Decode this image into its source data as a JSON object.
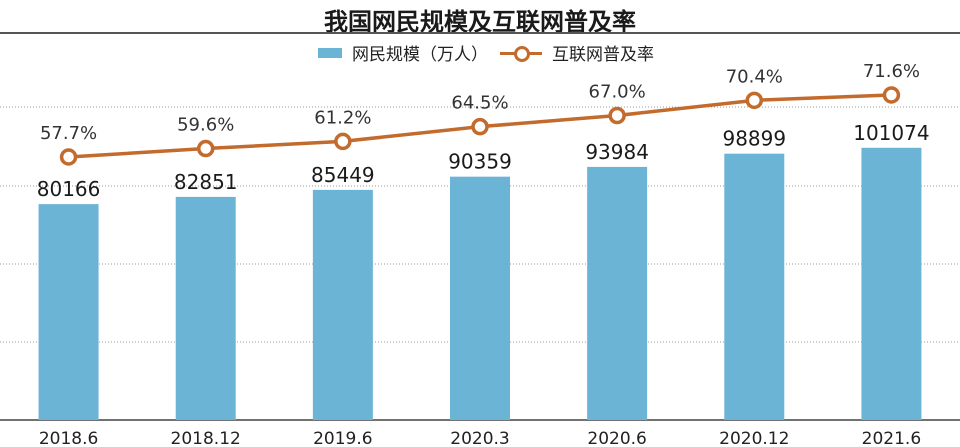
{
  "title": "我国网民规模及互联网普及率",
  "legend": {
    "bar_label": "网民规模（万人）",
    "line_label": "互联网普及率"
  },
  "colors": {
    "bar": "#6cb4d6",
    "line": "#c36a2d",
    "grid": "#9a9a9a",
    "text": "#222222"
  },
  "chart_data": {
    "type": "bar",
    "title": "我国网民规模及互联网普及率",
    "categories": [
      "2018.6",
      "2018.12",
      "2019.6",
      "2020.3",
      "2020.6",
      "2020.12",
      "2021.6"
    ],
    "series": [
      {
        "name": "网民规模（万人）",
        "type": "bar",
        "values": [
          80166,
          82851,
          85449,
          90359,
          93984,
          98899,
          101074
        ],
        "labels": [
          "80166",
          "82851",
          "85449",
          "90359",
          "93984",
          "98899",
          "101074"
        ]
      },
      {
        "name": "互联网普及率",
        "type": "line",
        "values": [
          57.7,
          59.6,
          61.2,
          64.5,
          67.0,
          70.4,
          71.6
        ],
        "labels": [
          "57.7%",
          "59.6%",
          "61.2%",
          "64.5%",
          "67.0%",
          "70.4%",
          "71.6%"
        ]
      }
    ],
    "grid": true,
    "legend_position": "top-center"
  }
}
